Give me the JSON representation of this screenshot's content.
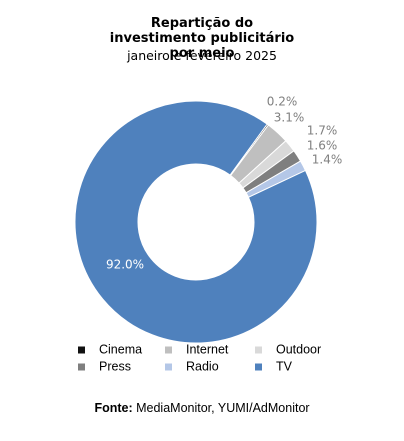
{
  "chart_data": {
    "type": "donut",
    "title": "Repartição do investimento publicitário por meio",
    "subtitle": "janeiro e fevereiro 2025",
    "categories": [
      "Cinema",
      "Internet",
      "Outdoor",
      "Press",
      "Radio",
      "TV"
    ],
    "values": [
      0.2,
      3.1,
      1.7,
      1.6,
      1.4,
      92.0
    ],
    "value_labels": [
      "0.2%",
      "3.1%",
      "1.7%",
      "1.6%",
      "1.4%",
      "92.0%"
    ],
    "colors": [
      "#111111",
      "#bfbfbf",
      "#d9d9d9",
      "#7f7f7f",
      "#b4c7e7",
      "#4f81bd"
    ],
    "source": {
      "label": "Fonte:",
      "text": "MediaMonitor, YUMI/AdMonitor"
    }
  }
}
